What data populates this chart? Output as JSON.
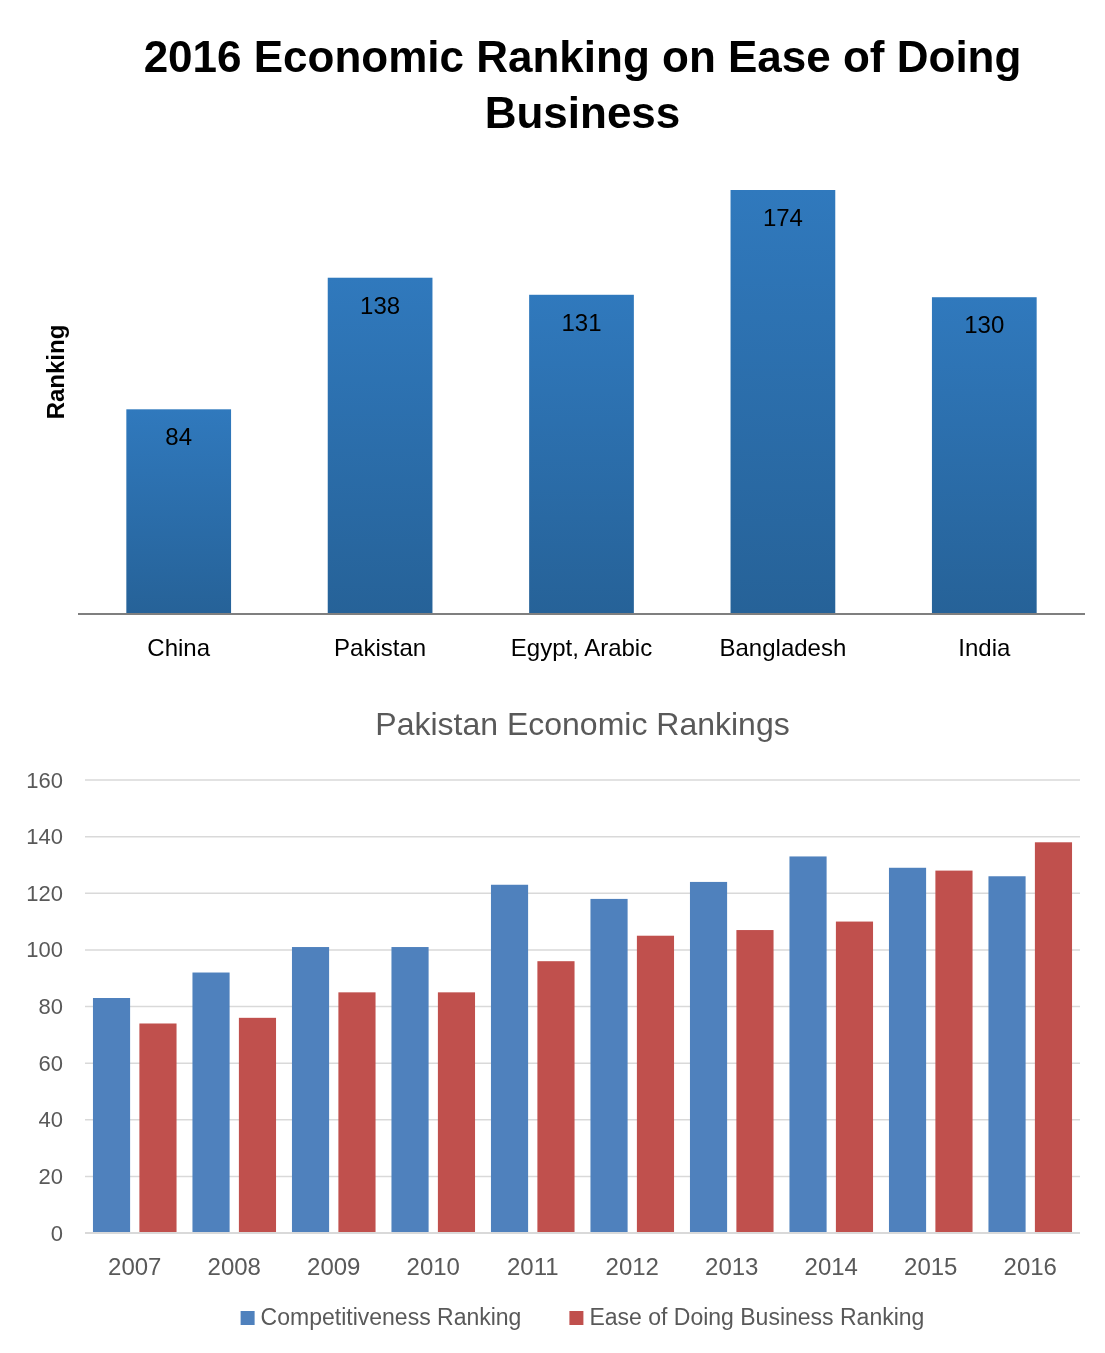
{
  "chart_data": [
    {
      "type": "bar",
      "title": "2016 Economic Ranking on Ease of Doing Business",
      "ylabel": "Ranking",
      "categories": [
        "China",
        "Pakistan",
        "Egypt, Arabic",
        "Bangladesh",
        "India"
      ],
      "values": [
        84,
        138,
        131,
        174,
        130
      ],
      "color": "#2e75b6",
      "data_labels": true,
      "tick_labels": "x"
    },
    {
      "type": "bar",
      "title": "Pakistan Economic Rankings",
      "categories": [
        "2007",
        "2008",
        "2009",
        "2010",
        "2011",
        "2012",
        "2013",
        "2014",
        "2015",
        "2016"
      ],
      "series": [
        {
          "name": "Competitiveness Ranking",
          "color": "#4f81bd",
          "values": [
            83,
            92,
            101,
            101,
            123,
            118,
            124,
            133,
            129,
            126
          ]
        },
        {
          "name": "Ease of Doing Business Ranking",
          "color": "#c0504d",
          "values": [
            74,
            76,
            85,
            85,
            96,
            105,
            107,
            110,
            128,
            138
          ]
        }
      ],
      "ylim": [
        0,
        160
      ],
      "yticks": [
        0,
        20,
        40,
        60,
        80,
        100,
        120,
        140,
        160
      ],
      "grid": "y",
      "legend": "bottom"
    }
  ]
}
